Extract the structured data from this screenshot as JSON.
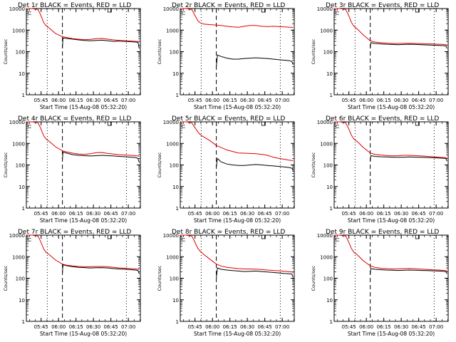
{
  "figure": {
    "panel_count": 9,
    "colors": {
      "events": "#000000",
      "lld": "#e00000",
      "axis": "#000000",
      "background": "#ffffff"
    },
    "x_tick_labels": [
      "05:45",
      "06:00",
      "06:15",
      "06:30",
      "06:45",
      "07:00"
    ],
    "y_tick_labels": [
      "1",
      "10",
      "100",
      "1000",
      "10000"
    ],
    "xlabel": "Start Time (15-Aug-08 05:32:20)",
    "ylabel": "Counts/sec"
  },
  "chart_data": [
    {
      "type": "line",
      "title": "Det 1r BLACK = Events, RED = LLD",
      "xlabel": "Start Time (15-Aug-08 05:32:20)",
      "ylabel": "Counts/sec",
      "x_unit": "minutes since 05:32:20",
      "x": [
        0,
        5,
        10,
        15,
        17,
        20,
        25,
        30,
        35,
        40,
        45,
        50,
        55,
        60,
        65,
        68,
        70
      ],
      "ylim": [
        1,
        10000
      ],
      "yscale": "log",
      "xlim": [
        0,
        98
      ],
      "series": [
        {
          "name": "Events",
          "color": "#000000",
          "x": [
            31,
            31.5,
            35,
            40,
            45,
            50,
            55,
            60,
            65,
            70,
            75,
            80,
            85,
            90,
            94,
            96,
            97
          ],
          "values": [
            150,
            430,
            410,
            380,
            350,
            330,
            320,
            330,
            340,
            320,
            300,
            310,
            300,
            290,
            280,
            270,
            140
          ]
        },
        {
          "name": "LLD",
          "color": "#e00000",
          "x": [
            0,
            5,
            10,
            12,
            15,
            17,
            20,
            25,
            31,
            35,
            40,
            45,
            50,
            55,
            60,
            65,
            70,
            75,
            80,
            85,
            90,
            94,
            96,
            97
          ],
          "values": [
            10000,
            10000,
            9000,
            5500,
            2200,
            1600,
            1200,
            700,
            500,
            450,
            400,
            380,
            360,
            370,
            400,
            410,
            380,
            350,
            330,
            320,
            310,
            300,
            300,
            290
          ]
        }
      ]
    },
    {
      "type": "line",
      "title": "Det 2r BLACK = Events, RED = LLD",
      "xlabel": "Start Time (15-Aug-08 05:32:20)",
      "ylabel": "Counts/sec",
      "x_unit": "minutes since 05:32:20",
      "ylim": [
        1,
        10000
      ],
      "yscale": "log",
      "xlim": [
        0,
        98
      ],
      "series": [
        {
          "name": "Events",
          "color": "#000000",
          "x": [
            31,
            32,
            35,
            40,
            45,
            50,
            55,
            60,
            65,
            70,
            75,
            80,
            85,
            90,
            94,
            96,
            97
          ],
          "values": [
            20,
            70,
            60,
            50,
            45,
            45,
            48,
            50,
            52,
            50,
            48,
            45,
            42,
            40,
            38,
            35,
            25
          ]
        },
        {
          "name": "LLD",
          "color": "#e00000",
          "x": [
            0,
            5,
            10,
            12,
            15,
            17,
            20,
            25,
            31,
            35,
            40,
            45,
            50,
            55,
            60,
            65,
            70,
            75,
            80,
            85,
            90,
            94,
            96,
            97
          ],
          "values": [
            10000,
            10000,
            9000,
            5500,
            2800,
            2200,
            1900,
            1800,
            1700,
            1650,
            1500,
            1400,
            1350,
            1500,
            1650,
            1650,
            1500,
            1450,
            1500,
            1450,
            1400,
            1350,
            1350,
            1300
          ]
        }
      ]
    },
    {
      "type": "line",
      "title": "Det 3r BLACK = Events, RED = LLD",
      "xlabel": "Start Time (15-Aug-08 05:32:20)",
      "ylabel": "Counts/sec",
      "x_unit": "minutes since 05:32:20",
      "ylim": [
        1,
        10000
      ],
      "yscale": "log",
      "xlim": [
        0,
        98
      ],
      "series": [
        {
          "name": "Events",
          "color": "#000000",
          "x": [
            31,
            31.5,
            35,
            40,
            45,
            50,
            55,
            60,
            65,
            70,
            75,
            80,
            85,
            90,
            94,
            96,
            97
          ],
          "values": [
            150,
            260,
            240,
            230,
            220,
            215,
            210,
            215,
            220,
            215,
            210,
            205,
            200,
            195,
            190,
            185,
            140
          ]
        },
        {
          "name": "LLD",
          "color": "#e00000",
          "x": [
            0,
            5,
            10,
            12,
            15,
            17,
            20,
            25,
            31,
            35,
            40,
            45,
            50,
            55,
            60,
            65,
            70,
            75,
            80,
            85,
            90,
            94,
            96,
            97
          ],
          "values": [
            10000,
            10000,
            9000,
            5500,
            2200,
            1500,
            1100,
            600,
            320,
            280,
            260,
            250,
            240,
            240,
            245,
            245,
            240,
            235,
            230,
            225,
            220,
            215,
            210,
            200
          ]
        }
      ]
    },
    {
      "type": "line",
      "title": "Det 4r BLACK = Events, RED = LLD",
      "xlabel": "Start Time (15-Aug-08 05:32:20)",
      "ylabel": "Counts/sec",
      "x_unit": "minutes since 05:32:20",
      "ylim": [
        1,
        10000
      ],
      "yscale": "log",
      "xlim": [
        0,
        98
      ],
      "series": [
        {
          "name": "Events",
          "color": "#000000",
          "x": [
            31,
            31.5,
            35,
            40,
            45,
            50,
            55,
            60,
            65,
            70,
            75,
            80,
            85,
            90,
            94,
            96,
            97
          ],
          "values": [
            180,
            400,
            350,
            300,
            280,
            270,
            260,
            270,
            280,
            270,
            260,
            250,
            240,
            230,
            220,
            200,
            130
          ]
        },
        {
          "name": "LLD",
          "color": "#e00000",
          "x": [
            0,
            5,
            10,
            12,
            15,
            17,
            20,
            25,
            31,
            35,
            40,
            45,
            50,
            55,
            60,
            65,
            70,
            75,
            80,
            85,
            90,
            94,
            96,
            97
          ],
          "values": [
            10000,
            10000,
            9000,
            5500,
            2200,
            1600,
            1200,
            700,
            450,
            400,
            350,
            320,
            310,
            330,
            370,
            380,
            340,
            320,
            300,
            290,
            280,
            270,
            260,
            250
          ]
        }
      ]
    },
    {
      "type": "line",
      "title": "Det 5r BLACK = Events, RED = LLD",
      "xlabel": "Start Time (15-Aug-08 05:32:20)",
      "ylabel": "Counts/sec",
      "x_unit": "minutes since 05:32:20",
      "ylim": [
        1,
        10000
      ],
      "yscale": "log",
      "xlim": [
        0,
        98
      ],
      "series": [
        {
          "name": "Events",
          "color": "#000000",
          "x": [
            31,
            32,
            35,
            40,
            45,
            50,
            55,
            60,
            65,
            70,
            75,
            80,
            85,
            90,
            94,
            96,
            97
          ],
          "values": [
            80,
            200,
            140,
            110,
            100,
            95,
            95,
            100,
            105,
            100,
            95,
            90,
            85,
            80,
            75,
            70,
            55
          ]
        },
        {
          "name": "LLD",
          "color": "#e00000",
          "x": [
            0,
            5,
            10,
            12,
            15,
            17,
            20,
            25,
            31,
            35,
            40,
            45,
            50,
            55,
            60,
            65,
            70,
            75,
            80,
            85,
            90,
            94,
            96,
            97
          ],
          "values": [
            10000,
            10000,
            9000,
            6000,
            3500,
            2600,
            2000,
            1400,
            800,
            650,
            500,
            420,
            360,
            350,
            340,
            330,
            310,
            280,
            230,
            200,
            180,
            165,
            160,
            155
          ]
        }
      ]
    },
    {
      "type": "line",
      "title": "Det 6r BLACK = Events, RED = LLD",
      "xlabel": "Start Time (15-Aug-08 05:32:20)",
      "ylabel": "Counts/sec",
      "x_unit": "minutes since 05:32:20",
      "ylim": [
        1,
        10000
      ],
      "yscale": "log",
      "xlim": [
        0,
        98
      ],
      "series": [
        {
          "name": "Events",
          "color": "#000000",
          "x": [
            31,
            31.5,
            35,
            40,
            45,
            50,
            55,
            60,
            65,
            70,
            75,
            80,
            85,
            90,
            94,
            96,
            97
          ],
          "values": [
            150,
            270,
            250,
            240,
            235,
            230,
            225,
            230,
            235,
            230,
            225,
            220,
            215,
            210,
            205,
            200,
            150
          ]
        },
        {
          "name": "LLD",
          "color": "#e00000",
          "x": [
            0,
            5,
            10,
            12,
            15,
            17,
            20,
            25,
            31,
            35,
            40,
            45,
            50,
            55,
            60,
            65,
            70,
            75,
            80,
            85,
            90,
            94,
            96,
            97
          ],
          "values": [
            10000,
            10000,
            9000,
            5500,
            2300,
            1600,
            1200,
            650,
            360,
            310,
            290,
            275,
            265,
            270,
            280,
            280,
            270,
            260,
            250,
            240,
            230,
            220,
            215,
            205
          ]
        }
      ]
    },
    {
      "type": "line",
      "title": "Det 7r BLACK = Events, RED = LLD",
      "xlabel": "Start Time (15-Aug-08 05:32:20)",
      "ylabel": "Counts/sec",
      "x_unit": "minutes since 05:32:20",
      "ylim": [
        1,
        10000
      ],
      "yscale": "log",
      "xlim": [
        0,
        98
      ],
      "series": [
        {
          "name": "Events",
          "color": "#000000",
          "x": [
            31,
            31.5,
            35,
            40,
            45,
            50,
            55,
            60,
            65,
            70,
            75,
            80,
            85,
            90,
            94,
            96,
            97
          ],
          "values": [
            180,
            420,
            380,
            340,
            320,
            310,
            300,
            305,
            310,
            300,
            280,
            270,
            260,
            250,
            240,
            230,
            160
          ]
        },
        {
          "name": "LLD",
          "color": "#e00000",
          "x": [
            0,
            5,
            10,
            12,
            15,
            17,
            20,
            25,
            31,
            35,
            40,
            45,
            50,
            55,
            60,
            65,
            70,
            75,
            80,
            85,
            90,
            94,
            96,
            97
          ],
          "values": [
            10000,
            10000,
            9000,
            5500,
            2200,
            1600,
            1200,
            700,
            450,
            400,
            370,
            350,
            340,
            345,
            350,
            350,
            340,
            320,
            300,
            290,
            280,
            270,
            265,
            255
          ]
        }
      ]
    },
    {
      "type": "line",
      "title": "Det 8r BLACK = Events, RED = LLD",
      "xlabel": "Start Time (15-Aug-08 05:32:20)",
      "ylabel": "Counts/sec",
      "x_unit": "minutes since 05:32:20",
      "ylim": [
        1,
        10000
      ],
      "yscale": "log",
      "xlim": [
        0,
        98
      ],
      "series": [
        {
          "name": "Events",
          "color": "#000000",
          "x": [
            31,
            32,
            35,
            40,
            45,
            50,
            55,
            60,
            65,
            70,
            75,
            80,
            85,
            90,
            94,
            96,
            97
          ],
          "values": [
            100,
            300,
            260,
            240,
            225,
            215,
            205,
            210,
            215,
            205,
            195,
            185,
            175,
            165,
            160,
            155,
            110
          ]
        },
        {
          "name": "LLD",
          "color": "#e00000",
          "x": [
            0,
            5,
            10,
            12,
            15,
            17,
            20,
            25,
            31,
            35,
            40,
            45,
            50,
            55,
            60,
            65,
            70,
            75,
            80,
            85,
            90,
            94,
            96,
            97
          ],
          "values": [
            10000,
            10000,
            9000,
            5500,
            2500,
            1800,
            1300,
            800,
            450,
            370,
            320,
            300,
            280,
            270,
            270,
            265,
            255,
            240,
            230,
            220,
            210,
            200,
            195,
            185
          ]
        }
      ]
    },
    {
      "type": "line",
      "title": "Det 9r BLACK = Events, RED = LLD",
      "xlabel": "Start Time (15-Aug-08 05:32:20)",
      "ylabel": "Counts/sec",
      "x_unit": "minutes since 05:32:20",
      "ylim": [
        1,
        10000
      ],
      "yscale": "log",
      "xlim": [
        0,
        98
      ],
      "series": [
        {
          "name": "Events",
          "color": "#000000",
          "x": [
            31,
            31.5,
            35,
            40,
            45,
            50,
            55,
            60,
            65,
            70,
            75,
            80,
            85,
            90,
            94,
            96,
            97
          ],
          "values": [
            150,
            280,
            260,
            250,
            240,
            235,
            230,
            235,
            240,
            235,
            230,
            225,
            220,
            215,
            210,
            205,
            160
          ]
        },
        {
          "name": "LLD",
          "color": "#e00000",
          "x": [
            0,
            5,
            10,
            12,
            15,
            17,
            20,
            25,
            31,
            35,
            40,
            45,
            50,
            55,
            60,
            65,
            70,
            75,
            80,
            85,
            90,
            94,
            96,
            97
          ],
          "values": [
            10000,
            10000,
            9000,
            5500,
            2300,
            1600,
            1200,
            650,
            380,
            320,
            290,
            280,
            270,
            275,
            280,
            285,
            275,
            265,
            255,
            245,
            240,
            230,
            225,
            215
          ]
        }
      ]
    }
  ]
}
